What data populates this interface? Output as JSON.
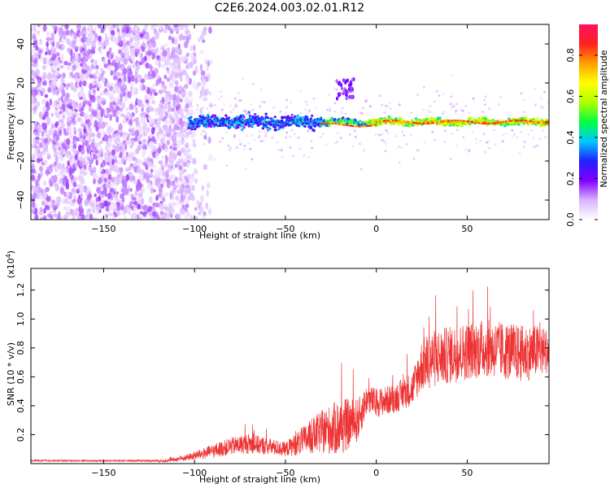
{
  "title": "C2E6.2024.003.02.01.R12",
  "chart_data": [
    {
      "type": "heatmap",
      "xlabel": "Height of straight line (km)",
      "ylabel": "Frequency (Hz)",
      "xlim": [
        -190,
        95
      ],
      "ylim": [
        -50,
        50
      ],
      "xticks": [
        -150,
        -100,
        -50,
        0,
        50
      ],
      "yticks": [
        -40,
        -20,
        0,
        20,
        40
      ],
      "colorbar": {
        "label": "Normalized spectral amplitude",
        "range": [
          0,
          0.95
        ],
        "ticks": [
          "0.0",
          "0.2",
          "0.4",
          "0.6",
          "0.8"
        ],
        "colors": [
          "#ffffff",
          "#d9b3ff",
          "#8000ff",
          "#2020ff",
          "#00c8ff",
          "#00ff40",
          "#b0ff00",
          "#ffff00",
          "#ffa000",
          "#ff2020",
          "#ff1060"
        ]
      },
      "regions": [
        {
          "x_range": [
            -190,
            -103
          ],
          "freq_range": [
            -50,
            50
          ],
          "amplitude": "0.05-0.15 (noise, purple speckle)"
        },
        {
          "x_range": [
            -103,
            -30
          ],
          "freq_center": 0,
          "freq_halfwidth": 6,
          "amplitude": "0.2-0.45"
        },
        {
          "x_range": [
            -30,
            95
          ],
          "freq_center": 0,
          "freq_halfwidth": 3,
          "amplitude": "0.4-0.9"
        },
        {
          "x_range": [
            -22,
            -12
          ],
          "freq_range": [
            12,
            22
          ],
          "amplitude": "0.15-0.25"
        }
      ]
    },
    {
      "type": "line",
      "color": "#ee3333",
      "xlabel": "Height of straight line (km)",
      "ylabel": "SNR (10 * v/v)",
      "yunit": "(x10",
      "yunit_exp": "4",
      "unit_close": ")",
      "xlim": [
        -190,
        95
      ],
      "ylim": [
        0,
        1.35
      ],
      "xticks": [
        -150,
        -100,
        -50,
        0,
        50
      ],
      "yticks": [
        0.2,
        0.4,
        0.6,
        0.8,
        1.0,
        1.2
      ],
      "x": [
        -190,
        -160,
        -130,
        -115,
        -105,
        -95,
        -80,
        -70,
        -60,
        -50,
        -40,
        -30,
        -20,
        -10,
        -5,
        0,
        10,
        20,
        25,
        30,
        40,
        50,
        60,
        70,
        80,
        90,
        95
      ],
      "mean": [
        0.02,
        0.02,
        0.02,
        0.02,
        0.04,
        0.07,
        0.12,
        0.14,
        0.12,
        0.1,
        0.16,
        0.22,
        0.25,
        0.3,
        0.45,
        0.42,
        0.45,
        0.52,
        0.68,
        0.72,
        0.75,
        0.78,
        0.8,
        0.78,
        0.76,
        0.78,
        0.78
      ],
      "spread": [
        0.005,
        0.005,
        0.005,
        0.01,
        0.02,
        0.04,
        0.06,
        0.07,
        0.06,
        0.05,
        0.1,
        0.15,
        0.2,
        0.15,
        0.1,
        0.1,
        0.1,
        0.12,
        0.18,
        0.2,
        0.2,
        0.2,
        0.2,
        0.2,
        0.2,
        0.18,
        0.15
      ]
    }
  ]
}
